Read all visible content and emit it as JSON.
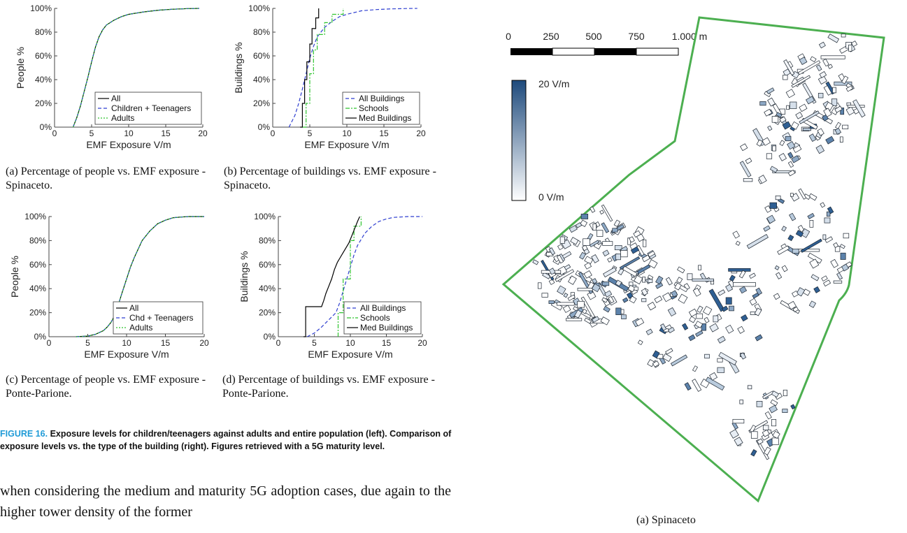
{
  "charts": {
    "a": {
      "chart_data": {
        "type": "line",
        "xlabel": "EMF Exposure V/m",
        "ylabel": "People %",
        "xlim": [
          0,
          20
        ],
        "ylim": [
          0,
          100
        ],
        "xticks": [
          "0",
          "5",
          "10",
          "15",
          "20"
        ],
        "yticks": [
          "0%",
          "20%",
          "40%",
          "60%",
          "80%",
          "100%"
        ],
        "legend_position": "bottom-right",
        "series": [
          {
            "name": "All",
            "color": "#000000",
            "dash": "solid",
            "x": [
              2.5,
              3,
              3.5,
              4,
              4.5,
              5,
              5.5,
              6,
              6.5,
              7,
              8,
              9,
              10,
              12,
              14,
              16,
              18,
              19.5
            ],
            "y": [
              0,
              8,
              18,
              30,
              42,
              55,
              67,
              76,
              82,
              86,
              90,
              93,
              95,
              97,
              98.5,
              99.3,
              99.8,
              100
            ]
          },
          {
            "name": "Children + Teenagers",
            "color": "#2f3fd0",
            "dash": "dashed",
            "x": [
              2.5,
              3,
              3.5,
              4,
              4.5,
              5,
              5.5,
              6,
              6.5,
              7,
              8,
              9,
              10,
              12,
              14,
              16,
              18,
              19.5
            ],
            "y": [
              0,
              8,
              18,
              30,
              42,
              55,
              67,
              76,
              82,
              86,
              90,
              93,
              95,
              97,
              98.5,
              99.3,
              99.8,
              100
            ]
          },
          {
            "name": "Adults",
            "color": "#2fc42f",
            "dash": "dotted",
            "x": [
              2.5,
              3,
              3.5,
              4,
              4.5,
              5,
              5.5,
              6,
              6.5,
              7,
              8,
              9,
              10,
              12,
              14,
              16,
              18,
              19.5
            ],
            "y": [
              0,
              8,
              18,
              30,
              42,
              55,
              67,
              76,
              82,
              86,
              90,
              93,
              95,
              97,
              98.5,
              99.3,
              99.8,
              100
            ]
          }
        ]
      },
      "caption_label": "(a)",
      "caption_text": "Percentage of people vs. EMF exposure - Spinaceto."
    },
    "b": {
      "chart_data": {
        "type": "line",
        "xlabel": "EMF Exposure V/m",
        "ylabel": "Buildings %",
        "xlim": [
          0,
          20
        ],
        "ylim": [
          0,
          100
        ],
        "xticks": [
          "0",
          "5",
          "10",
          "15",
          "20"
        ],
        "yticks": [
          "0%",
          "20%",
          "40%",
          "60%",
          "80%",
          "100%"
        ],
        "legend_position": "bottom-right",
        "series": [
          {
            "name": "All Buildings",
            "color": "#2f3fd0",
            "dash": "dashed",
            "x": [
              2.2,
              3,
              3.5,
              4,
              4.5,
              5,
              5.5,
              6,
              7,
              8,
              9,
              10,
              12,
              14,
              16,
              18,
              19.5
            ],
            "y": [
              0,
              10,
              20,
              32,
              45,
              58,
              68,
              76,
              84,
              89,
              93,
              95,
              98,
              99,
              99.6,
              99.9,
              100
            ]
          },
          {
            "name": "Schools",
            "color": "#2fc42f",
            "dash": "dashdot",
            "x": [
              4,
              4.5,
              4.5,
              5,
              5,
              5.5,
              5.5,
              6,
              6,
              7,
              7,
              8,
              8,
              9.5,
              9.5
            ],
            "y": [
              0,
              0,
              20,
              20,
              45,
              45,
              65,
              65,
              78,
              78,
              88,
              88,
              95,
              95,
              100
            ]
          },
          {
            "name": "Med Buildings",
            "color": "#000000",
            "dash": "solid",
            "x": [
              3.7,
              4,
              4,
              4.3,
              4.3,
              4.6,
              4.6,
              5,
              5,
              5.3,
              5.3,
              5.8,
              5.8,
              6.2,
              6.2
            ],
            "y": [
              0,
              0,
              20,
              20,
              40,
              40,
              55,
              55,
              70,
              70,
              83,
              83,
              92,
              92,
              100
            ]
          }
        ]
      },
      "caption_label": "(b)",
      "caption_text": "Percentage of buildings vs. EMF exposure - Spinaceto."
    },
    "c": {
      "chart_data": {
        "type": "line",
        "xlabel": "EMF Exposure V/m",
        "ylabel": "People %",
        "xlim": [
          0,
          20
        ],
        "ylim": [
          0,
          100
        ],
        "xticks": [
          "0",
          "5",
          "10",
          "15",
          "20"
        ],
        "yticks": [
          "0%",
          "20%",
          "40%",
          "60%",
          "80%",
          "100%"
        ],
        "legend_position": "bottom-right",
        "series": [
          {
            "name": "All",
            "color": "#000000",
            "dash": "solid",
            "x": [
              3.5,
              5,
              6,
              7,
              7.5,
              8,
              8.5,
              9,
              9.5,
              10,
              10.5,
              11,
              12,
              13,
              14,
              15,
              16,
              17,
              18,
              20
            ],
            "y": [
              0,
              0.5,
              2,
              5,
              8,
              12,
              18,
              28,
              38,
              48,
              58,
              66,
              80,
              88,
              94,
              97,
              99,
              99.6,
              100,
              100
            ]
          },
          {
            "name": "Chd + Teenagers",
            "color": "#2f3fd0",
            "dash": "dashed",
            "x": [
              3.5,
              5,
              6,
              7,
              7.5,
              8,
              8.5,
              9,
              9.5,
              10,
              10.5,
              11,
              12,
              13,
              14,
              15,
              16,
              17,
              18,
              20
            ],
            "y": [
              0,
              0.5,
              2,
              5,
              8,
              12,
              18,
              28,
              38,
              48,
              58,
              66,
              80,
              88,
              94,
              97,
              99,
              99.6,
              100,
              100
            ]
          },
          {
            "name": "Adults",
            "color": "#2fc42f",
            "dash": "dotted",
            "x": [
              3.5,
              5,
              6,
              7,
              7.5,
              8,
              8.5,
              9,
              9.5,
              10,
              10.5,
              11,
              12,
              13,
              14,
              15,
              16,
              17,
              18,
              20
            ],
            "y": [
              0,
              0.5,
              2,
              5,
              8,
              12,
              18,
              28,
              38,
              48,
              58,
              66,
              80,
              88,
              94,
              97,
              99,
              99.6,
              100,
              100
            ]
          }
        ]
      },
      "caption_label": "(c)",
      "caption_text": "Percentage of people vs. EMF exposure - Ponte-Parione."
    },
    "d": {
      "chart_data": {
        "type": "line",
        "xlabel": "EMF Exposure V/m",
        "ylabel": "Buildings %",
        "xlim": [
          0,
          20
        ],
        "ylim": [
          0,
          100
        ],
        "xticks": [
          "0",
          "5",
          "10",
          "15",
          "20"
        ],
        "yticks": [
          "0%",
          "20%",
          "40%",
          "60%",
          "80%",
          "100%"
        ],
        "legend_position": "bottom-right",
        "series": [
          {
            "name": "All Buildings",
            "color": "#2f3fd0",
            "dash": "dashed",
            "x": [
              4,
              5,
              6,
              7,
              8,
              8.5,
              9,
              9.5,
              10,
              10.5,
              11,
              12,
              13,
              14,
              15,
              16,
              18,
              20
            ],
            "y": [
              0,
              3,
              8,
              14,
              20,
              28,
              38,
              48,
              58,
              68,
              76,
              86,
              92,
              96,
              98,
              99.3,
              100,
              100
            ]
          },
          {
            "name": "Schools",
            "color": "#2fc42f",
            "dash": "dashdot",
            "x": [
              8.3,
              8.3,
              9,
              9,
              10,
              10,
              10.5,
              10.5,
              11.5,
              11.5
            ],
            "y": [
              0,
              20,
              20,
              48,
              48,
              80,
              80,
              92,
              92,
              100
            ]
          },
          {
            "name": "Med Buildings",
            "color": "#000000",
            "dash": "solid",
            "x": [
              3.5,
              3.8,
              3.8,
              6,
              6.3,
              6.6,
              7,
              7.4,
              7.8,
              8.2,
              8.6,
              9,
              9.4,
              9.8,
              10.2,
              10.6,
              11,
              11.3
            ],
            "y": [
              0,
              0,
              25,
              25,
              30,
              36,
              42,
              48,
              56,
              62,
              66,
              70,
              74,
              78,
              84,
              90,
              96,
              100
            ]
          }
        ]
      },
      "caption_label": "(d)",
      "caption_text": "Percentage of buildings vs. EMF exposure - Ponte-Parione."
    }
  },
  "figure_caption": {
    "number": "FIGURE 16.",
    "text": "Exposure levels for children/teenagers against adults and entire population (left). Comparison of exposure levels vs. the type of the building (right). Figures retrieved with a 5G maturity level."
  },
  "body_text": "when considering the medium and maturity 5G adoption cases, due again to the higher tower density of the former",
  "map": {
    "scale_labels": [
      "0",
      "250",
      "500",
      "750",
      "1.000 m"
    ],
    "colorbar_max": "20 V/m",
    "colorbar_min": "0 V/m",
    "colorbar_high_color": "#1e4a7c",
    "colorbar_low_color": "#ffffff",
    "boundary_color": "#4caf50",
    "caption": "(a) Spinaceto"
  }
}
